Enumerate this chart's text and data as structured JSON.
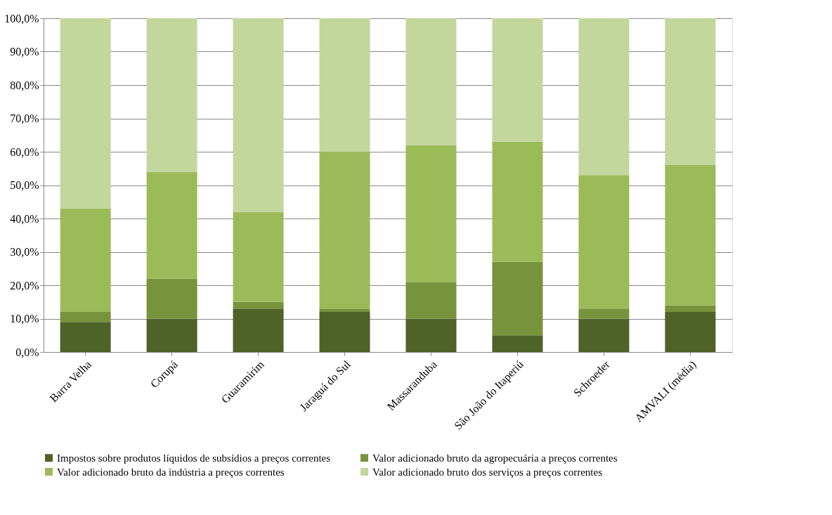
{
  "chart_data": {
    "type": "bar",
    "stacked": true,
    "categories": [
      "Barra Velha",
      "Corupá",
      "Guaramirim",
      "Jaraguá do Sul",
      "Massaranduba",
      "São João do Itaperiú",
      "Schroeder",
      "AMVALI (média)"
    ],
    "series": [
      {
        "name": "Impostos sobre produtos líquidos de subsídios a preços correntes",
        "color": "#4f6228",
        "values": [
          9,
          10,
          13,
          12,
          10,
          5,
          10,
          12
        ]
      },
      {
        "name": "Valor adicionado bruto da agropecuária a preços correntes",
        "color": "#77933c",
        "values": [
          3,
          12,
          2,
          1,
          11,
          22,
          3,
          2
        ]
      },
      {
        "name": "Valor adicionado bruto da indústria a preços correntes",
        "color": "#9bbb59",
        "values": [
          31,
          32,
          27,
          47,
          41,
          36,
          40,
          42
        ]
      },
      {
        "name": "Valor adicionado bruto dos serviços a preços correntes",
        "color": "#c3d69b",
        "values": [
          57,
          46,
          58,
          40,
          38,
          37,
          47,
          44
        ]
      }
    ],
    "ylim": [
      0,
      100
    ],
    "yticks": [
      {
        "value": 0,
        "label": "0,0%"
      },
      {
        "value": 10,
        "label": "10,0%"
      },
      {
        "value": 20,
        "label": "20,0%"
      },
      {
        "value": 30,
        "label": "30,0%"
      },
      {
        "value": 40,
        "label": "40,0%"
      },
      {
        "value": 50,
        "label": "50,0%"
      },
      {
        "value": 60,
        "label": "60,0%"
      },
      {
        "value": 70,
        "label": "70,0%"
      },
      {
        "value": 80,
        "label": "80,0%"
      },
      {
        "value": 90,
        "label": "90,0%"
      },
      {
        "value": 100,
        "label": "100,0%"
      }
    ],
    "grid": "y",
    "legend": "bottom"
  }
}
